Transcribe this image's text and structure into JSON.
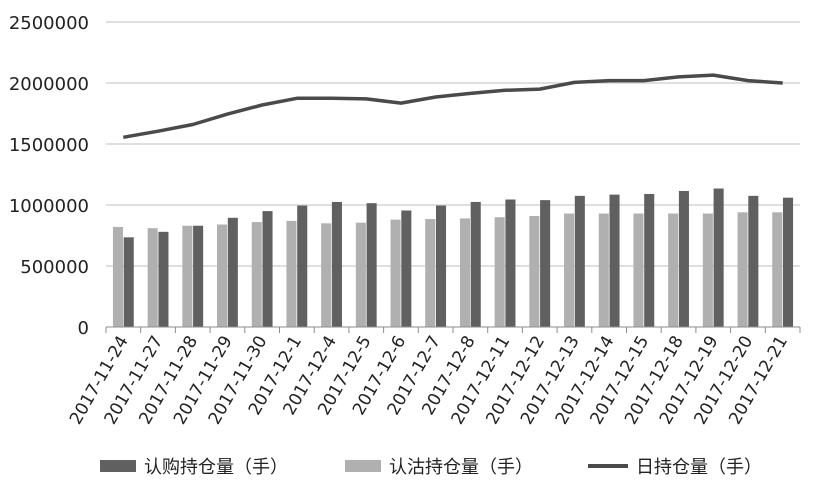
{
  "chart_data": {
    "type": "bar",
    "title": "",
    "xlabel": "",
    "ylabel": "",
    "ylim": [
      0,
      2500000
    ],
    "yticks": [
      0,
      500000,
      1000000,
      1500000,
      2000000,
      2500000
    ],
    "ytick_labels": [
      "0",
      "500000",
      "1000000",
      "1500000",
      "2000000",
      "2500000"
    ],
    "grid": "horizontal",
    "legend_position": "bottom",
    "categories": [
      "2017-11-24",
      "2017-11-27",
      "2017-11-28",
      "2017-11-29",
      "2017-11-30",
      "2017-12-1",
      "2017-12-4",
      "2017-12-5",
      "2017-12-6",
      "2017-12-7",
      "2017-12-8",
      "2017-12-11",
      "2017-12-12",
      "2017-12-13",
      "2017-12-14",
      "2017-12-15",
      "2017-12-18",
      "2017-12-19",
      "2017-12-20",
      "2017-12-21"
    ],
    "series": [
      {
        "name": "认沽持仓量（手）",
        "type": "bar",
        "color": "#b0b0b0",
        "values": [
          820000,
          810000,
          830000,
          840000,
          860000,
          870000,
          850000,
          855000,
          880000,
          885000,
          890000,
          900000,
          910000,
          930000,
          930000,
          930000,
          930000,
          930000,
          940000,
          940000
        ]
      },
      {
        "name": "认购持仓量（手）",
        "type": "bar",
        "color": "#606060",
        "values": [
          735000,
          780000,
          830000,
          895000,
          950000,
          995000,
          1025000,
          1015000,
          955000,
          995000,
          1025000,
          1045000,
          1040000,
          1075000,
          1085000,
          1090000,
          1115000,
          1135000,
          1075000,
          1060000
        ]
      },
      {
        "name": "日持仓量（手）",
        "type": "line",
        "color": "#4a4a4a",
        "values": [
          1555000,
          1605000,
          1660000,
          1745000,
          1820000,
          1875000,
          1875000,
          1870000,
          1835000,
          1885000,
          1915000,
          1940000,
          1950000,
          2005000,
          2020000,
          2020000,
          2050000,
          2065000,
          2020000,
          2000000
        ]
      }
    ],
    "legend": [
      {
        "label": "认购持仓量（手）",
        "kind": "bar",
        "color": "#606060"
      },
      {
        "label": "认沽持仓量（手）",
        "kind": "bar",
        "color": "#b0b0b0"
      },
      {
        "label": "日持仓量（手）",
        "kind": "line",
        "color": "#4a4a4a"
      }
    ]
  }
}
